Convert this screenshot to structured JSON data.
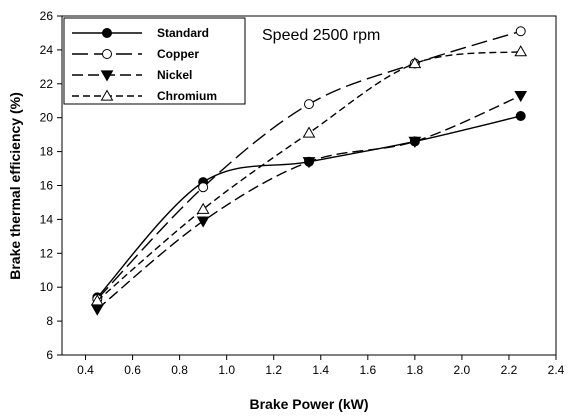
{
  "chart_data": {
    "type": "line",
    "xlabel": "Brake Power (kW)",
    "ylabel": "Brake thermal efficiency (%)",
    "annotation": "Speed 2500 rpm",
    "xlim": [
      0.3,
      2.4
    ],
    "ylim": [
      6,
      26
    ],
    "xticks": [
      0.4,
      0.6,
      0.8,
      1.0,
      1.2,
      1.4,
      1.6,
      1.8,
      2.0,
      2.2,
      2.4
    ],
    "xtick_labels": [
      "0.4",
      "0.6",
      "0.8",
      "1.0",
      "1.2",
      "1.4",
      "1.6",
      "1.8",
      "2.0",
      "2.2",
      "2.4"
    ],
    "yticks": [
      6,
      8,
      10,
      12,
      14,
      16,
      18,
      20,
      22,
      24,
      26
    ],
    "ytick_labels": [
      "6",
      "8",
      "10",
      "12",
      "14",
      "16",
      "18",
      "20",
      "22",
      "24",
      "26"
    ],
    "grid": false,
    "legend_position": "top-left",
    "series": [
      {
        "name": "Standard",
        "marker": "filled-circle",
        "dash": "solid",
        "x": [
          0.45,
          0.9,
          1.35,
          1.8,
          2.25
        ],
        "y": [
          9.4,
          16.2,
          17.4,
          18.6,
          20.1
        ]
      },
      {
        "name": "Copper",
        "marker": "open-circle",
        "dash": "long-dash",
        "x": [
          0.45,
          0.9,
          1.35,
          1.8,
          2.25
        ],
        "y": [
          9.3,
          15.9,
          20.8,
          23.2,
          25.1
        ]
      },
      {
        "name": "Nickel",
        "marker": "filled-triangle-down",
        "dash": "dash",
        "x": [
          0.45,
          0.9,
          1.35,
          1.8,
          2.25
        ],
        "y": [
          8.7,
          13.9,
          17.4,
          18.6,
          21.3
        ]
      },
      {
        "name": "Chromium",
        "marker": "open-triangle-up",
        "dash": "short-dash",
        "x": [
          0.45,
          0.9,
          1.35,
          1.8,
          2.25
        ],
        "y": [
          9.2,
          14.6,
          19.1,
          23.2,
          23.9
        ]
      }
    ]
  }
}
